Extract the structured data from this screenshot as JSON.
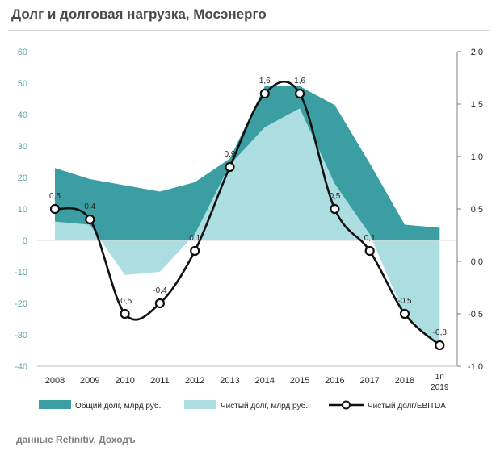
{
  "title": "Долг и долговая нагрузка, Мосэнерго",
  "source": "данные Refinitiv, Доходъ",
  "colors": {
    "total_debt": "#3a9ea3",
    "net_debt": "#acdde0",
    "ratio_line": "#111111",
    "left_axis": "#5fa3a8"
  },
  "chart_data": {
    "type": "area",
    "categories": [
      "2008",
      "2009",
      "2010",
      "2011",
      "2012",
      "2013",
      "2014",
      "2015",
      "2016",
      "2017",
      "2018",
      "1п 2019"
    ],
    "category_lines": [
      [
        "2008"
      ],
      [
        "2009"
      ],
      [
        "2010"
      ],
      [
        "2011"
      ],
      [
        "2012"
      ],
      [
        "2013"
      ],
      [
        "2014"
      ],
      [
        "2015"
      ],
      [
        "2016"
      ],
      [
        "2017"
      ],
      [
        "2018"
      ],
      [
        "1п",
        "2019"
      ]
    ],
    "ylim_left": [
      -40,
      60
    ],
    "yticks_left": [
      "60",
      "50",
      "40",
      "30",
      "20",
      "10",
      "0",
      "-10",
      "-20",
      "-30",
      "-40"
    ],
    "ylim_right": [
      -1.0,
      2.0
    ],
    "yticks_right": [
      "2,0",
      "1,5",
      "1,0",
      "0,5",
      "0,0",
      "-0,5",
      "-1,0"
    ],
    "grid": false,
    "legend_position": "bottom",
    "series": [
      {
        "name": "Общий долг, млрд руб.",
        "type": "area",
        "axis": "left",
        "values": [
          23,
          19.5,
          17.5,
          15.5,
          18.5,
          26,
          49,
          49,
          43,
          24.5,
          5,
          4
        ]
      },
      {
        "name": "Чистый долг, млрд руб.",
        "type": "area",
        "axis": "left",
        "values": [
          6,
          5,
          -11,
          -10,
          2,
          24,
          36,
          42,
          18,
          2,
          -24,
          -33
        ]
      },
      {
        "name": "Чистый долг/EBITDA",
        "type": "line",
        "axis": "right",
        "values": [
          0.5,
          0.4,
          -0.5,
          -0.4,
          0.1,
          0.9,
          1.6,
          1.6,
          0.5,
          0.1,
          -0.5,
          -0.8
        ],
        "labels": [
          "0,5",
          "0,4",
          "-0,5",
          "-0,4",
          "0,1",
          "0,9",
          "1,6",
          "1,6",
          "0,5",
          "0,1",
          "-0,5",
          "-0,8"
        ]
      }
    ]
  }
}
